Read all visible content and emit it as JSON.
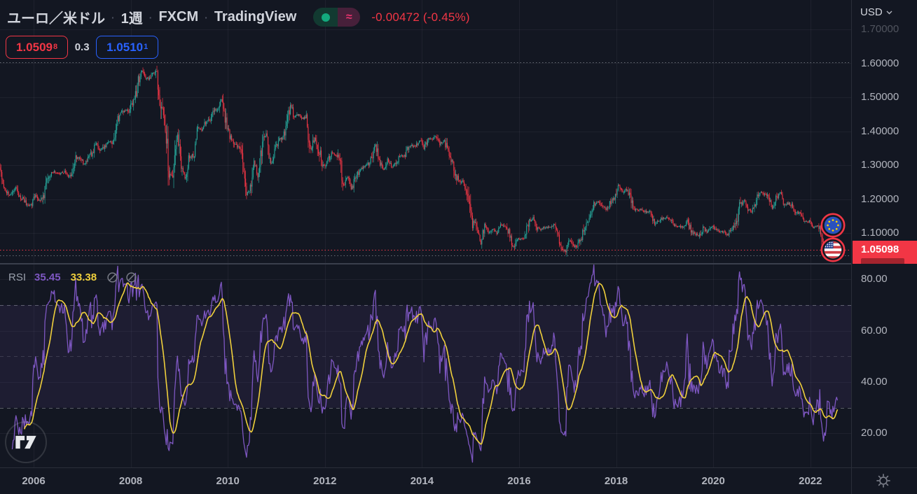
{
  "header": {
    "symbol": "ユーロ／米ドル",
    "interval": "1週",
    "exchange": "FXCM",
    "brand": "TradingView",
    "separator": "·",
    "approx_glyph": "≈",
    "change_text": "-0.00472 (-0.45%)",
    "bid_main": "1.0509",
    "bid_sup": "8",
    "spread": "0.3",
    "ask_main": "1.0510",
    "ask_sup": "1"
  },
  "price_scale": {
    "currency": "USD",
    "current_price_label": "1.05098"
  },
  "rsi_header": {
    "label": "RSI",
    "rsi_value": "35.45",
    "ma_value": "33.38"
  },
  "time_scale": {
    "years": [
      2006,
      2008,
      2010,
      2012,
      2014,
      2016,
      2018,
      2020,
      2022
    ]
  },
  "colors": {
    "background": "#131722",
    "up": "#26a69a",
    "down": "#f23645",
    "accent_red": "#f23645",
    "accent_blue": "#2962ff",
    "axis_text": "#b2b5be",
    "title_text": "#d1d4dc",
    "grid": "rgba(240,243,250,0.05)",
    "rsi_purple": "#7e57c2",
    "rsi_yellow": "#f0d03c",
    "band_fill": "rgba(126,87,194,0.10)",
    "level_dash": "rgba(178,181,190,0.45)",
    "dotted_gray": "rgba(150,155,165,0.65)"
  },
  "chart_data": [
    {
      "type": "candlestick",
      "title": "ユーロ／米ドル 1週 FXCM",
      "ylabel": "USD",
      "interval": "1W",
      "x_ticks": [
        2006,
        2008,
        2010,
        2012,
        2014,
        2016,
        2018,
        2020,
        2022
      ],
      "y_ticks": [
        1.1,
        1.2,
        1.3,
        1.4,
        1.5,
        1.6,
        1.7
      ],
      "ylim": [
        1.01,
        1.72
      ],
      "x_range": [
        2005.29,
        2022.56
      ],
      "current_price": 1.05098,
      "change": -0.00472,
      "change_pct": -0.45,
      "high_dotted_level": 1.604,
      "low_dotted_level": 1.034,
      "monthly_start": "2005-04",
      "monthly_closes": [
        1.286,
        1.233,
        1.217,
        1.212,
        1.233,
        1.203,
        1.199,
        1.179,
        1.186,
        1.211,
        1.192,
        1.213,
        1.262,
        1.28,
        1.278,
        1.276,
        1.281,
        1.267,
        1.276,
        1.325,
        1.32,
        1.302,
        1.323,
        1.336,
        1.365,
        1.344,
        1.354,
        1.371,
        1.363,
        1.427,
        1.448,
        1.463,
        1.459,
        1.487,
        1.519,
        1.581,
        1.562,
        1.555,
        1.575,
        1.56,
        1.467,
        1.408,
        1.272,
        1.269,
        1.397,
        1.281,
        1.267,
        1.326,
        1.324,
        1.413,
        1.403,
        1.426,
        1.433,
        1.464,
        1.472,
        1.501,
        1.433,
        1.386,
        1.363,
        1.351,
        1.33,
        1.227,
        1.224,
        1.305,
        1.268,
        1.363,
        1.395,
        1.298,
        1.338,
        1.369,
        1.381,
        1.416,
        1.48,
        1.439,
        1.452,
        1.44,
        1.438,
        1.339,
        1.385,
        1.344,
        1.296,
        1.308,
        1.332,
        1.334,
        1.324,
        1.236,
        1.266,
        1.23,
        1.257,
        1.286,
        1.296,
        1.298,
        1.319,
        1.358,
        1.305,
        1.282,
        1.317,
        1.299,
        1.301,
        1.33,
        1.322,
        1.353,
        1.358,
        1.359,
        1.374,
        1.349,
        1.38,
        1.377,
        1.387,
        1.363,
        1.369,
        1.339,
        1.313,
        1.263,
        1.253,
        1.245,
        1.21,
        1.129,
        1.119,
        1.062,
        1.122,
        1.098,
        1.115,
        1.098,
        1.121,
        1.116,
        1.1,
        1.057,
        1.086,
        1.083,
        1.087,
        1.138,
        1.145,
        1.113,
        1.111,
        1.117,
        1.116,
        1.124,
        1.098,
        1.059,
        1.046,
        1.078,
        1.058,
        1.065,
        1.09,
        1.124,
        1.143,
        1.184,
        1.191,
        1.181,
        1.165,
        1.19,
        1.2,
        1.241,
        1.219,
        1.232,
        1.208,
        1.169,
        1.168,
        1.169,
        1.16,
        1.16,
        1.131,
        1.132,
        1.147,
        1.145,
        1.137,
        1.122,
        1.121,
        1.117,
        1.137,
        1.108,
        1.098,
        1.09,
        1.115,
        1.102,
        1.121,
        1.109,
        1.103,
        1.103,
        1.095,
        1.11,
        1.123,
        1.178,
        1.194,
        1.172,
        1.165,
        1.193,
        1.222,
        1.213,
        1.209,
        1.173,
        1.202,
        1.219,
        1.186,
        1.187,
        1.181,
        1.158,
        1.156,
        1.134,
        1.137,
        1.115,
        1.122,
        1.107,
        1.055,
        1.073,
        1.051
      ]
    },
    {
      "type": "line",
      "title": "RSI",
      "y_ticks": [
        20,
        40,
        60,
        80
      ],
      "ylim": [
        12,
        88
      ],
      "levels": {
        "upper": 70,
        "middle": 50,
        "lower": 30
      },
      "series": [
        {
          "name": "RSI",
          "color": "#7e57c2",
          "current": 35.45
        },
        {
          "name": "RSI-based MA",
          "color": "#f0d03c",
          "current": 33.38
        }
      ],
      "legend_position": "top-left",
      "grid": true
    }
  ]
}
